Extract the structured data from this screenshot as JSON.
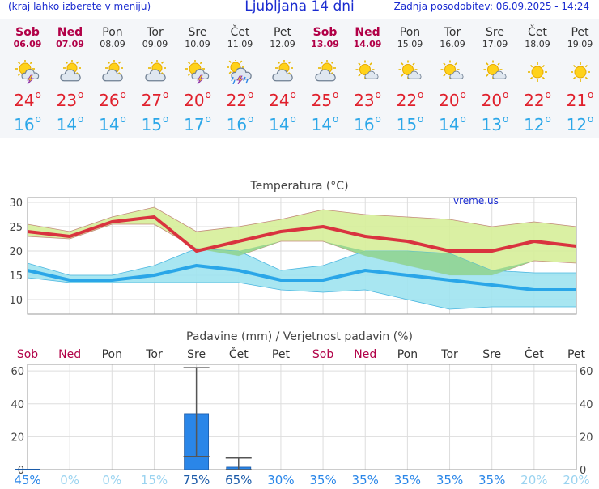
{
  "header": {
    "menu_hint": "(kraj lahko izberete v meniju)",
    "title": "Ljubljana 14 dni",
    "last_update": "Zadnja posodobitev: 06.09.2025 - 14:24"
  },
  "colors": {
    "header_text": "#1a2bd0",
    "weekend": "#b10047",
    "max_temp": "#e0202c",
    "min_temp": "#2aa6e8",
    "max_band": "#d6ee99",
    "min_band": "#9fe3f0",
    "overlap_band": "#8fd48e",
    "precip_bar": "#2a86e8"
  },
  "days": [
    {
      "name": "Sob",
      "date": "06.09",
      "weekend": true,
      "icon": "sun-cloud-thunder-icon",
      "max": "24",
      "min": "16"
    },
    {
      "name": "Ned",
      "date": "07.09",
      "weekend": true,
      "icon": "sun-cloud-icon",
      "max": "23",
      "min": "14"
    },
    {
      "name": "Pon",
      "date": "08.09",
      "weekend": false,
      "icon": "sun-cloud-icon",
      "max": "26",
      "min": "14"
    },
    {
      "name": "Tor",
      "date": "09.09",
      "weekend": false,
      "icon": "sun-cloud-icon",
      "max": "27",
      "min": "15"
    },
    {
      "name": "Sre",
      "date": "10.09",
      "weekend": false,
      "icon": "sun-cloud-thunder-icon",
      "max": "20",
      "min": "17"
    },
    {
      "name": "Čet",
      "date": "11.09",
      "weekend": false,
      "icon": "sun-cloud-rain-thunder-icon",
      "max": "22",
      "min": "16"
    },
    {
      "name": "Pet",
      "date": "12.09",
      "weekend": false,
      "icon": "sun-cloud-icon",
      "max": "24",
      "min": "14"
    },
    {
      "name": "Sob",
      "date": "13.09",
      "weekend": true,
      "icon": "sun-cloud-icon",
      "max": "25",
      "min": "14"
    },
    {
      "name": "Ned",
      "date": "14.09",
      "weekend": true,
      "icon": "sun-small-cloud-icon",
      "max": "23",
      "min": "16"
    },
    {
      "name": "Pon",
      "date": "15.09",
      "weekend": false,
      "icon": "sun-small-cloud-icon",
      "max": "22",
      "min": "15"
    },
    {
      "name": "Tor",
      "date": "16.09",
      "weekend": false,
      "icon": "sun-small-cloud-icon",
      "max": "20",
      "min": "14"
    },
    {
      "name": "Sre",
      "date": "17.09",
      "weekend": false,
      "icon": "sun-small-cloud-icon",
      "max": "20",
      "min": "13"
    },
    {
      "name": "Čet",
      "date": "18.09",
      "weekend": false,
      "icon": "sun-icon",
      "max": "22",
      "min": "12"
    },
    {
      "name": "Pet",
      "date": "19.09",
      "weekend": false,
      "icon": "sun-icon",
      "max": "21",
      "min": "12"
    }
  ],
  "chart_data": [
    {
      "type": "line",
      "title": "Temperatura (°C)",
      "watermark": "vreme.us",
      "categories": [
        "06.09",
        "07.09",
        "08.09",
        "09.09",
        "10.09",
        "11.09",
        "12.09",
        "13.09",
        "14.09",
        "15.09",
        "16.09",
        "17.09",
        "18.09",
        "19.09"
      ],
      "ylim": [
        7,
        31
      ],
      "yticks": [
        10,
        15,
        20,
        25,
        30
      ],
      "grid": true,
      "max_series": {
        "values": [
          24,
          23,
          26,
          27,
          20,
          22,
          24,
          25,
          23,
          22,
          20,
          20,
          22,
          21
        ],
        "band_high": [
          25.5,
          24,
          27,
          29,
          24,
          25,
          26.5,
          28.5,
          27.5,
          27,
          26.5,
          25,
          26,
          25
        ],
        "band_low": [
          23,
          22.5,
          25.5,
          25.5,
          20.5,
          19,
          22,
          22,
          19,
          17,
          15,
          15,
          18,
          17.5
        ]
      },
      "min_series": {
        "values": [
          16,
          14,
          14,
          15,
          17,
          16,
          14,
          14,
          16,
          15,
          14,
          13,
          12,
          12
        ],
        "band_high": [
          17.5,
          15,
          15,
          17,
          20.5,
          20,
          16,
          17,
          20,
          20,
          19.5,
          16,
          15.5,
          15.5
        ],
        "band_low": [
          14.5,
          13.5,
          13.5,
          13.5,
          13.5,
          13.5,
          12,
          11.5,
          12,
          10,
          8,
          8.5,
          8.5,
          8.5
        ]
      }
    },
    {
      "type": "bar",
      "title": "Padavine (mm) / Verjetnost padavin (%)",
      "categories": [
        "Sob",
        "Ned",
        "Pon",
        "Tor",
        "Sre",
        "Čet",
        "Pet",
        "Sob",
        "Ned",
        "Pon",
        "Tor",
        "Sre",
        "Čet",
        "Pet"
      ],
      "weekend": [
        true,
        true,
        false,
        false,
        false,
        false,
        false,
        true,
        true,
        false,
        false,
        false,
        false,
        false
      ],
      "values": [
        0.3,
        0,
        0,
        0,
        34,
        1.5,
        0,
        0,
        0,
        0,
        0,
        0,
        0,
        0
      ],
      "err_low": [
        0,
        0,
        0,
        0,
        8,
        0,
        0,
        0,
        0,
        0,
        0,
        0,
        0,
        0
      ],
      "err_high": [
        0,
        0,
        0,
        0,
        62,
        7,
        0,
        0,
        0,
        0,
        0,
        0,
        0,
        0
      ],
      "probability": [
        "45%",
        "0%",
        "0%",
        "15%",
        "75%",
        "65%",
        "30%",
        "35%",
        "35%",
        "35%",
        "35%",
        "35%",
        "20%",
        "20%"
      ],
      "probability_values": [
        45,
        0,
        0,
        15,
        75,
        65,
        30,
        35,
        35,
        35,
        35,
        35,
        20,
        20
      ],
      "ylim": [
        0,
        64
      ],
      "yticks": [
        0,
        20,
        40,
        60
      ],
      "grid": true
    }
  ]
}
